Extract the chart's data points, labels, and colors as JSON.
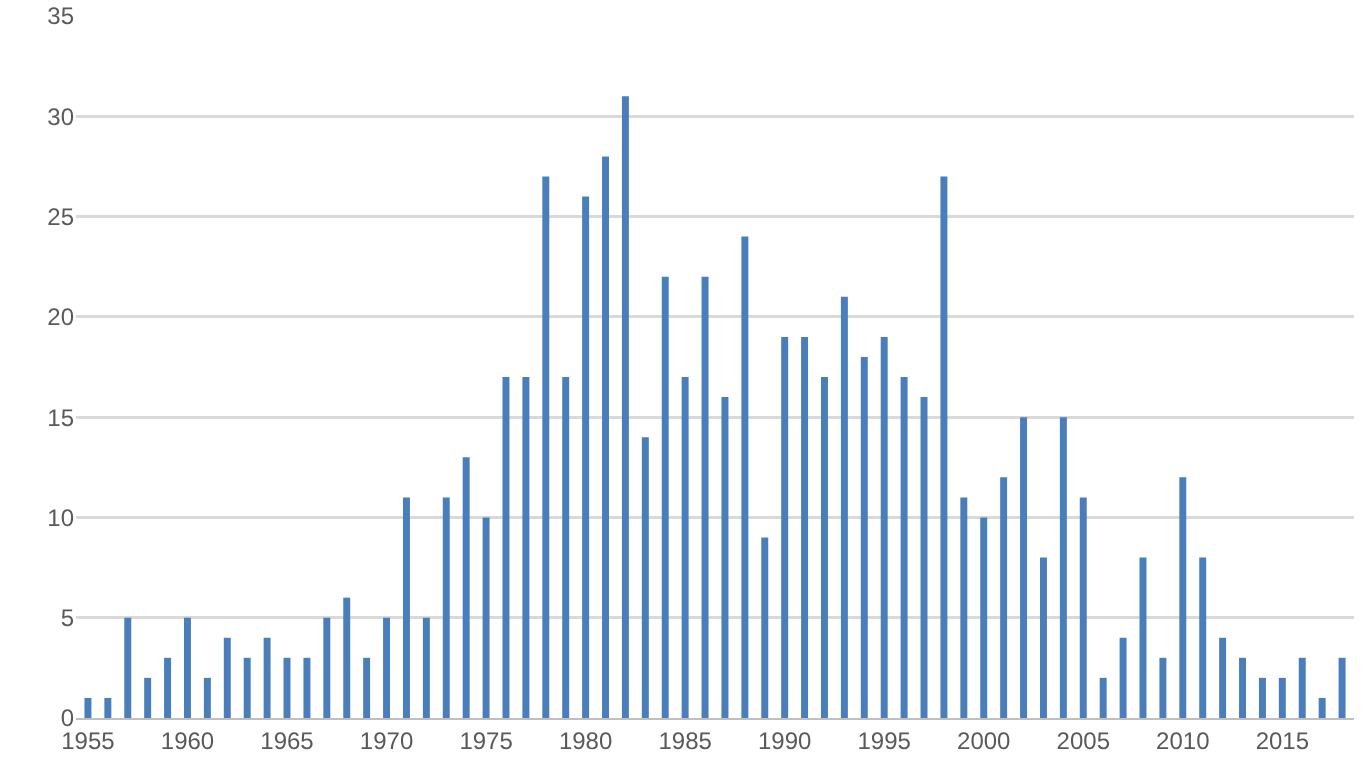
{
  "chart_data": {
    "type": "bar",
    "x": [
      1955,
      1956,
      1957,
      1958,
      1959,
      1960,
      1961,
      1962,
      1963,
      1964,
      1965,
      1966,
      1967,
      1968,
      1969,
      1970,
      1971,
      1972,
      1973,
      1974,
      1975,
      1976,
      1977,
      1978,
      1979,
      1980,
      1981,
      1982,
      1983,
      1984,
      1985,
      1986,
      1987,
      1988,
      1989,
      1990,
      1991,
      1992,
      1993,
      1994,
      1995,
      1996,
      1997,
      1998,
      1999,
      2000,
      2001,
      2002,
      2003,
      2004,
      2005,
      2006,
      2007,
      2008,
      2009,
      2010,
      2011,
      2012,
      2013,
      2014,
      2015,
      2016,
      2017,
      2018
    ],
    "values": [
      1,
      1,
      5,
      2,
      3,
      5,
      2,
      4,
      3,
      4,
      3,
      3,
      5,
      6,
      3,
      5,
      11,
      5,
      11,
      13,
      10,
      17,
      17,
      27,
      17,
      26,
      28,
      31,
      14,
      22,
      17,
      22,
      16,
      24,
      9,
      19,
      19,
      17,
      21,
      18,
      19,
      17,
      16,
      27,
      11,
      10,
      12,
      15,
      8,
      15,
      11,
      2,
      4,
      8,
      3,
      12,
      8,
      4,
      3,
      2,
      2,
      3,
      1,
      3
    ],
    "color": "#4a7ebb",
    "xlim": [
      1954.4,
      2018.6
    ],
    "xticks": [
      1955,
      1960,
      1965,
      1970,
      1975,
      1980,
      1985,
      1990,
      1995,
      2000,
      2005,
      2010,
      2015
    ],
    "ylim": [
      0,
      35
    ],
    "yticks": [
      0,
      5,
      10,
      15,
      20,
      25,
      30,
      35
    ],
    "grid": "y"
  }
}
